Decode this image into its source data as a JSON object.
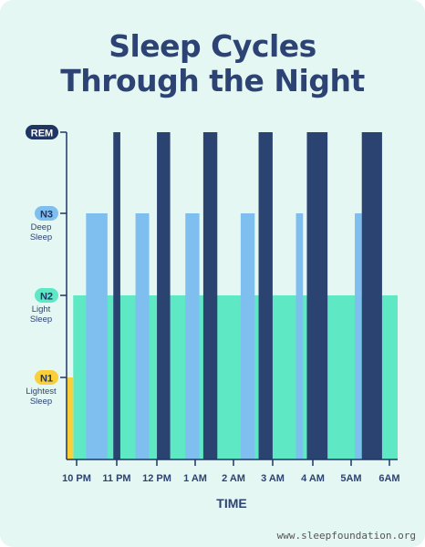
{
  "chart_data": {
    "type": "bar",
    "title": [
      "Sleep Cycles",
      "Through the Night"
    ],
    "xlabel": "TIME",
    "x_ticks": [
      "10 PM",
      "11 PM",
      "12 PM",
      "1 AM",
      "2 AM",
      "3 AM",
      "4 AM",
      "5AM",
      "6AM"
    ],
    "x_range": [
      22,
      30.5
    ],
    "y_levels": [
      {
        "tag": "REM",
        "desc": [
          "",
          ""
        ],
        "level": 4,
        "tag_color": "#1f3564",
        "tag_text_color": "#ffffff"
      },
      {
        "tag": "N3",
        "desc": [
          "Deep",
          "Sleep"
        ],
        "level": 3,
        "tag_color": "#7fbff0",
        "tag_text_color": "#1f3564"
      },
      {
        "tag": "N2",
        "desc": [
          "Light",
          "Sleep"
        ],
        "level": 2,
        "tag_color": "#5ee8c4",
        "tag_text_color": "#1f3564"
      },
      {
        "tag": "N1",
        "desc": [
          "Lightest",
          "Sleep"
        ],
        "level": 1,
        "tag_color": "#f9cf3a",
        "tag_text_color": "#1f3564"
      }
    ],
    "colors": {
      "N1": "#f9cf3a",
      "N2": "#5ee8c4",
      "N3": "#7ebff0",
      "REM": "#2b4371",
      "axis": "#1f3564"
    },
    "background_n2": {
      "stage": "N2",
      "level": 2,
      "start": 22.17,
      "end": 30.5
    },
    "bars": [
      {
        "stage": "N1",
        "level": 1,
        "start": 22.0,
        "end": 22.17
      },
      {
        "stage": "N3",
        "level": 3,
        "start": 22.5,
        "end": 23.05
      },
      {
        "stage": "REM",
        "level": 4,
        "start": 23.2,
        "end": 23.38
      },
      {
        "stage": "N3",
        "level": 3,
        "start": 23.77,
        "end": 24.12
      },
      {
        "stage": "REM",
        "level": 4,
        "start": 24.32,
        "end": 24.66
      },
      {
        "stage": "N3",
        "level": 3,
        "start": 25.05,
        "end": 25.41
      },
      {
        "stage": "REM",
        "level": 4,
        "start": 25.51,
        "end": 25.87
      },
      {
        "stage": "N3",
        "level": 3,
        "start": 26.47,
        "end": 26.83
      },
      {
        "stage": "REM",
        "level": 4,
        "start": 26.93,
        "end": 27.29
      },
      {
        "stage": "N3",
        "level": 3,
        "start": 27.89,
        "end": 28.07
      },
      {
        "stage": "REM",
        "level": 4,
        "start": 28.17,
        "end": 28.7
      },
      {
        "stage": "N3",
        "level": 3,
        "start": 29.4,
        "end": 29.58
      },
      {
        "stage": "REM",
        "level": 4,
        "start": 29.58,
        "end": 30.1
      }
    ]
  },
  "footer": "www.sleepfoundation.org"
}
